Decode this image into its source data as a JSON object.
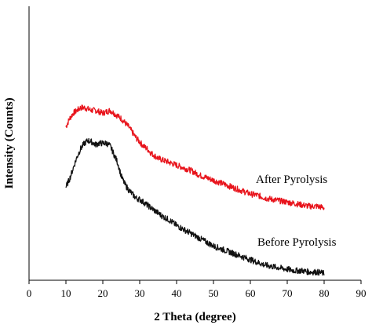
{
  "chart_data": {
    "type": "line",
    "title": "",
    "xlabel": "2 Theta (degree)",
    "ylabel": "Intensity (Counts)",
    "xlim": [
      0,
      90
    ],
    "ylim": [
      0,
      1
    ],
    "xticks": [
      0,
      10,
      20,
      30,
      40,
      50,
      60,
      70,
      80,
      90
    ],
    "y_tick_labels_shown": false,
    "grid": false,
    "legend": "none",
    "annotations": [
      {
        "text": "After Pyrolysis",
        "series": "After Pyrolysis"
      },
      {
        "text": "Before Pyrolysis",
        "series": "Before Pyrolysis"
      }
    ],
    "series": [
      {
        "name": "After Pyrolysis",
        "color": "#e8141c",
        "x": [
          10,
          11,
          12,
          13,
          14,
          15,
          16,
          17,
          18,
          19,
          20,
          21,
          22,
          23,
          24,
          25,
          26,
          27,
          28,
          29,
          30,
          31,
          32,
          33,
          34,
          35,
          36,
          38,
          40,
          42,
          44,
          46,
          48,
          50,
          52,
          54,
          56,
          58,
          60,
          62,
          64,
          66,
          68,
          70,
          72,
          74,
          76,
          78,
          80
        ],
        "y": [
          0.56,
          0.59,
          0.61,
          0.62,
          0.63,
          0.63,
          0.625,
          0.62,
          0.62,
          0.615,
          0.61,
          0.615,
          0.62,
          0.61,
          0.6,
          0.59,
          0.575,
          0.56,
          0.54,
          0.52,
          0.505,
          0.49,
          0.48,
          0.465,
          0.455,
          0.445,
          0.44,
          0.43,
          0.42,
          0.41,
          0.4,
          0.385,
          0.375,
          0.365,
          0.355,
          0.345,
          0.335,
          0.325,
          0.315,
          0.31,
          0.3,
          0.295,
          0.29,
          0.285,
          0.28,
          0.275,
          0.27,
          0.27,
          0.265
        ]
      },
      {
        "name": "Before Pyrolysis",
        "color": "#111111",
        "x": [
          10,
          11,
          12,
          13,
          14,
          15,
          16,
          17,
          18,
          19,
          20,
          21,
          22,
          23,
          24,
          25,
          26,
          27,
          28,
          29,
          30,
          31,
          32,
          33,
          34,
          35,
          36,
          38,
          40,
          42,
          44,
          46,
          48,
          50,
          52,
          54,
          56,
          58,
          60,
          62,
          64,
          66,
          68,
          70,
          72,
          74,
          76,
          78,
          80
        ],
        "y": [
          0.34,
          0.37,
          0.41,
          0.45,
          0.48,
          0.5,
          0.51,
          0.505,
          0.495,
          0.5,
          0.5,
          0.5,
          0.49,
          0.46,
          0.43,
          0.38,
          0.35,
          0.33,
          0.315,
          0.3,
          0.295,
          0.285,
          0.275,
          0.265,
          0.255,
          0.245,
          0.235,
          0.22,
          0.2,
          0.185,
          0.17,
          0.155,
          0.14,
          0.125,
          0.115,
          0.105,
          0.095,
          0.085,
          0.075,
          0.065,
          0.055,
          0.05,
          0.045,
          0.04,
          0.035,
          0.035,
          0.03,
          0.03,
          0.025
        ]
      }
    ]
  }
}
